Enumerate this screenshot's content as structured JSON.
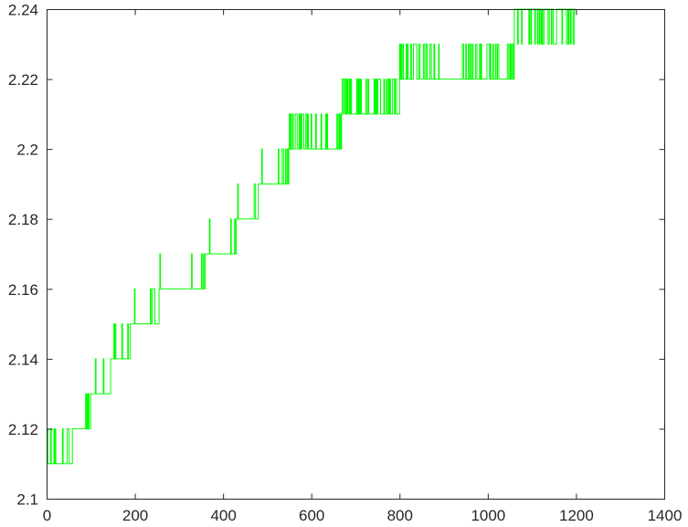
{
  "chart_data": {
    "type": "line",
    "title": "",
    "xlabel": "",
    "ylabel": "",
    "xlim": [
      0,
      1400
    ],
    "ylim": [
      2.1,
      2.24
    ],
    "grid": false,
    "legend": "none",
    "xticks": [
      "0",
      "200",
      "400",
      "600",
      "800",
      "1000",
      "1200",
      "1400"
    ],
    "yticks": [
      "2.1",
      "2.12",
      "2.14",
      "2.16",
      "2.18",
      "2.2",
      "2.22",
      "2.24"
    ],
    "series": [
      {
        "color": "#00ff00",
        "levels": [
          {
            "x_start": 0,
            "x_end": 60,
            "base": 2.11,
            "alt": 2.12,
            "flicker": "dense"
          },
          {
            "x_start": 60,
            "x_end": 100,
            "base": 2.12,
            "alt": 2.13,
            "flicker": "medium"
          },
          {
            "x_start": 100,
            "x_end": 145,
            "base": 2.13,
            "alt": 2.14,
            "flicker": "medium"
          },
          {
            "x_start": 145,
            "x_end": 190,
            "base": 2.14,
            "alt": 2.15,
            "flicker": "medium"
          },
          {
            "x_start": 190,
            "x_end": 255,
            "base": 2.15,
            "alt": 2.16,
            "flicker": "medium"
          },
          {
            "x_start": 255,
            "x_end": 360,
            "base": 2.16,
            "alt": 2.17,
            "flicker": "medium"
          },
          {
            "x_start": 360,
            "x_end": 430,
            "base": 2.17,
            "alt": 2.18,
            "flicker": "medium"
          },
          {
            "x_start": 430,
            "x_end": 480,
            "base": 2.18,
            "alt": 2.19,
            "flicker": "medium"
          },
          {
            "x_start": 480,
            "x_end": 550,
            "base": 2.19,
            "alt": 2.2,
            "flicker": "medium"
          },
          {
            "x_start": 550,
            "x_end": 670,
            "base": 2.2,
            "alt": 2.21,
            "flicker": "dense"
          },
          {
            "x_start": 670,
            "x_end": 800,
            "base": 2.21,
            "alt": 2.22,
            "flicker": "dense"
          },
          {
            "x_start": 800,
            "x_end": 1060,
            "base": 2.22,
            "alt": 2.23,
            "flicker": "dense"
          },
          {
            "x_start": 1060,
            "x_end": 1200,
            "base": 2.23,
            "alt": 2.24,
            "flicker": "dense"
          }
        ]
      }
    ]
  }
}
